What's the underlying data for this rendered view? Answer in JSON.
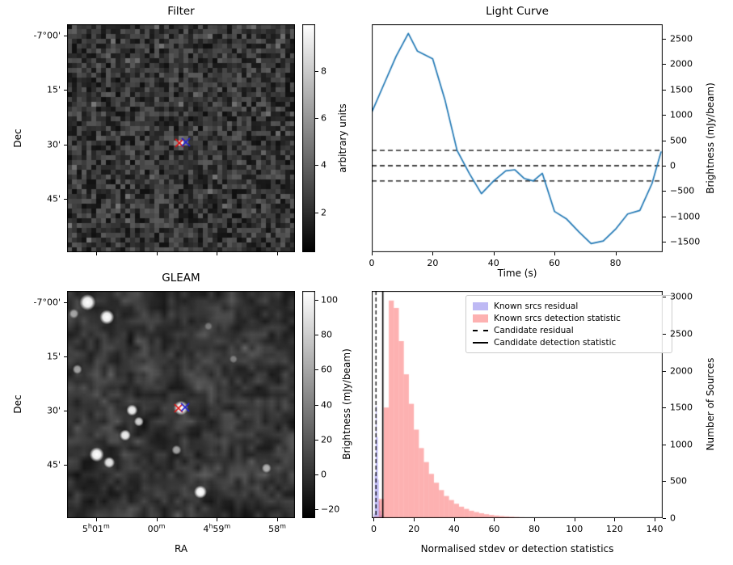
{
  "chart_data": [
    {
      "id": "filter_map",
      "type": "heatmap",
      "title": "Filter",
      "xlabel": "",
      "ylabel": "Dec",
      "ytick_labels": [
        "-7°00'",
        "15'",
        "30'",
        "45'"
      ],
      "image_style": "pixelated grayscale noise map with faint point source at centre",
      "colorbar": {
        "label": "arbitrary units",
        "ticks": [
          8,
          6,
          4,
          2
        ],
        "range": [
          0.3,
          10
        ]
      },
      "markers": [
        {
          "shape": "x",
          "color": "#dd1111",
          "fx": 0.493,
          "fy": 0.521
        },
        {
          "shape": "x",
          "color": "#2222cc",
          "fx": 0.521,
          "fy": 0.517
        }
      ]
    },
    {
      "id": "light_curve",
      "type": "line",
      "title": "Light Curve",
      "xlabel": "Time (s)",
      "ylabel": "Brightness (mJy/beam)",
      "line_color": "#1f77b4",
      "x": [
        0,
        4,
        8,
        12,
        15,
        20,
        24,
        28,
        32,
        36,
        40,
        44,
        47,
        50,
        53,
        56,
        60,
        64,
        68,
        72,
        76,
        80,
        84,
        88,
        92,
        95
      ],
      "y": [
        1050,
        1600,
        2150,
        2600,
        2250,
        2100,
        1300,
        300,
        -150,
        -550,
        -300,
        -100,
        -80,
        -250,
        -300,
        -150,
        -900,
        -1050,
        -1300,
        -1530,
        -1480,
        -1250,
        -950,
        -880,
        -350,
        280
      ],
      "threshold_lines": [
        300,
        0,
        -300
      ],
      "xlim": [
        0,
        95.5
      ],
      "ylim": [
        -1700,
        2780
      ],
      "xticks": [
        0,
        20,
        40,
        60,
        80
      ],
      "yticks": [
        2500,
        2000,
        1500,
        1000,
        500,
        0,
        -500,
        -1000,
        -1500
      ]
    },
    {
      "id": "gleam_map",
      "type": "heatmap",
      "title": "GLEAM",
      "xlabel": "RA",
      "ylabel": "Dec",
      "xtick_labels": [
        "5^h01^m",
        "00^m",
        "4^h59^m",
        "58^m"
      ],
      "ytick_labels": [
        "-7°00'",
        "15'",
        "30'",
        "45'"
      ],
      "image_style": "smoothed grayscale radio map with bright point sources",
      "colorbar": {
        "label": "Brightness (mJy/beam)",
        "ticks": [
          100,
          80,
          60,
          40,
          20,
          0,
          -20
        ],
        "range": [
          -25,
          105
        ]
      },
      "sources": [
        {
          "fx": 0.09,
          "fy": 0.05,
          "r": 10,
          "a": 1.0
        },
        {
          "fx": 0.175,
          "fy": 0.115,
          "r": 9,
          "a": 1.0
        },
        {
          "fx": 0.03,
          "fy": 0.1,
          "r": 6,
          "a": 0.55
        },
        {
          "fx": 0.045,
          "fy": 0.345,
          "r": 6,
          "a": 0.6
        },
        {
          "fx": 0.5,
          "fy": 0.515,
          "r": 9,
          "a": 1.0
        },
        {
          "fx": 0.285,
          "fy": 0.525,
          "r": 7,
          "a": 0.95
        },
        {
          "fx": 0.315,
          "fy": 0.575,
          "r": 6,
          "a": 0.8
        },
        {
          "fx": 0.255,
          "fy": 0.635,
          "r": 7,
          "a": 0.95
        },
        {
          "fx": 0.13,
          "fy": 0.72,
          "r": 9,
          "a": 1.0
        },
        {
          "fx": 0.185,
          "fy": 0.755,
          "r": 7,
          "a": 0.9
        },
        {
          "fx": 0.48,
          "fy": 0.7,
          "r": 6,
          "a": 0.6
        },
        {
          "fx": 0.585,
          "fy": 0.885,
          "r": 8,
          "a": 1.0
        },
        {
          "fx": 0.875,
          "fy": 0.78,
          "r": 6,
          "a": 0.65
        },
        {
          "fx": 0.73,
          "fy": 0.3,
          "r": 5,
          "a": 0.35
        },
        {
          "fx": 0.62,
          "fy": 0.155,
          "r": 5,
          "a": 0.3
        }
      ],
      "markers": [
        {
          "shape": "x",
          "color": "#dd1111",
          "fx": 0.489,
          "fy": 0.516
        },
        {
          "shape": "x",
          "color": "#2222cc",
          "fx": 0.518,
          "fy": 0.512
        }
      ]
    },
    {
      "id": "stats_hist",
      "type": "histogram",
      "xlabel": "Normalised stdev or detection statistics",
      "ylabel": "Number of Sources",
      "xlim": [
        -1,
        144
      ],
      "ylim": [
        0,
        3080
      ],
      "xticks": [
        0,
        20,
        40,
        60,
        80,
        100,
        120,
        140
      ],
      "yticks": [
        0,
        500,
        1000,
        1500,
        2000,
        2500,
        3000
      ],
      "series": [
        {
          "name": "Known srcs residual",
          "color": "rgba(110,100,230,0.45)",
          "bin_start": 0,
          "bin_width": 0.5,
          "counts": [
            60,
            600,
            1520,
            1100,
            520,
            230,
            100,
            45,
            20,
            8,
            3
          ]
        },
        {
          "name": "Known srcs detection statistic",
          "color": "rgba(250,70,70,0.42)",
          "bin_start": 0,
          "bin_width": 2.5,
          "counts": [
            20,
            260,
            1500,
            2950,
            2850,
            2400,
            1950,
            1550,
            1200,
            950,
            760,
            600,
            480,
            380,
            300,
            245,
            195,
            155,
            125,
            100,
            82,
            66,
            53,
            43,
            35,
            28,
            23,
            19,
            15,
            12,
            10,
            8,
            7,
            6,
            5,
            4,
            4,
            3,
            3,
            2,
            2,
            2,
            1,
            1,
            1,
            1,
            1,
            0,
            1,
            0,
            1,
            0,
            0,
            0,
            0,
            0,
            1,
            0
          ]
        }
      ],
      "vlines": [
        {
          "name": "Candidate residual",
          "style": "dashed",
          "x": 1.1
        },
        {
          "name": "Candidate detection statistic",
          "style": "solid",
          "x": 4.5
        }
      ],
      "legend": [
        {
          "label": "Known srcs residual",
          "swatch": "patch",
          "color": "rgba(110,100,230,0.45)"
        },
        {
          "label": "Known srcs detection statistic",
          "swatch": "patch",
          "color": "rgba(250,70,70,0.42)"
        },
        {
          "label": "Candidate residual",
          "swatch": "dashed-line",
          "color": "#000000"
        },
        {
          "label": "Candidate detection statistic",
          "swatch": "solid-line",
          "color": "#000000"
        }
      ]
    }
  ]
}
